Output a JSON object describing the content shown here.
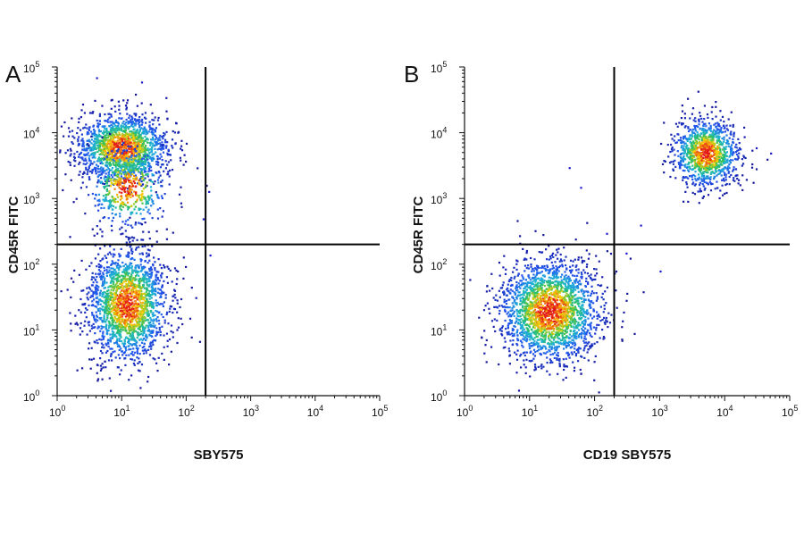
{
  "chart_data": [
    {
      "type": "scatter",
      "panel_label": "A",
      "xlabel": "SBY575",
      "ylabel": "CD45R FITC",
      "x_scale": "log",
      "y_scale": "log",
      "xlim": [
        1,
        100000
      ],
      "ylim": [
        1,
        100000
      ],
      "x_ticks": [
        {
          "base": "10",
          "exp": "0"
        },
        {
          "base": "10",
          "exp": "1"
        },
        {
          "base": "10",
          "exp": "2"
        },
        {
          "base": "10",
          "exp": "3"
        },
        {
          "base": "10",
          "exp": "4"
        },
        {
          "base": "10",
          "exp": "5"
        }
      ],
      "y_ticks": [
        {
          "base": "10",
          "exp": "0"
        },
        {
          "base": "10",
          "exp": "1"
        },
        {
          "base": "10",
          "exp": "2"
        },
        {
          "base": "10",
          "exp": "3"
        },
        {
          "base": "10",
          "exp": "4"
        },
        {
          "base": "10",
          "exp": "5"
        }
      ],
      "gate": {
        "x": 200,
        "y": 200
      },
      "grid": false,
      "coloring": "density (blue-green-yellow-red)",
      "populations": [
        {
          "center_x": 10,
          "center_y": 6000,
          "spread_x_decades": 0.35,
          "spread_y_decades": 0.25,
          "events": 1600
        },
        {
          "center_x": 12,
          "center_y": 1500,
          "spread_x_decades": 0.3,
          "spread_y_decades": 0.3,
          "events": 500
        },
        {
          "center_x": 12,
          "center_y": 25,
          "spread_x_decades": 0.3,
          "spread_y_decades": 0.42,
          "events": 1900
        }
      ],
      "outlier_events": [
        [
          4,
          70000
        ],
        [
          20,
          60000
        ],
        [
          220,
          1300
        ],
        [
          230,
          140
        ],
        [
          180,
          500
        ]
      ]
    },
    {
      "type": "scatter",
      "panel_label": "B",
      "xlabel": "CD19 SBY575",
      "ylabel": "CD45R FITC",
      "x_scale": "log",
      "y_scale": "log",
      "xlim": [
        1,
        100000
      ],
      "ylim": [
        1,
        100000
      ],
      "x_ticks": [
        {
          "base": "10",
          "exp": "0"
        },
        {
          "base": "10",
          "exp": "1"
        },
        {
          "base": "10",
          "exp": "2"
        },
        {
          "base": "10",
          "exp": "3"
        },
        {
          "base": "10",
          "exp": "4"
        },
        {
          "base": "10",
          "exp": "5"
        }
      ],
      "y_ticks": [
        {
          "base": "10",
          "exp": "0"
        },
        {
          "base": "10",
          "exp": "1"
        },
        {
          "base": "10",
          "exp": "2"
        },
        {
          "base": "10",
          "exp": "3"
        },
        {
          "base": "10",
          "exp": "4"
        },
        {
          "base": "10",
          "exp": "5"
        }
      ],
      "gate": {
        "x": 200,
        "y": 200
      },
      "grid": false,
      "coloring": "density (blue-green-yellow-red)",
      "populations": [
        {
          "center_x": 20,
          "center_y": 20,
          "spread_x_decades": 0.38,
          "spread_y_decades": 0.38,
          "events": 2200
        },
        {
          "center_x": 5000,
          "center_y": 5000,
          "spread_x_decades": 0.25,
          "spread_y_decades": 0.25,
          "events": 1100
        }
      ],
      "outlier_events": [
        [
          60,
          1500
        ],
        [
          40,
          3000
        ],
        [
          300,
          150
        ],
        [
          150,
          300
        ],
        [
          500,
          400
        ],
        [
          1000,
          80
        ],
        [
          30000,
          6000
        ],
        [
          50000,
          5000
        ]
      ]
    }
  ],
  "colors": {
    "density_low": "#1a1acc",
    "density_mid": "#22bb66",
    "density_high": "#ffd000",
    "density_peak": "#e31a1c",
    "axes": "#111111",
    "gate_lines": "#000000"
  }
}
